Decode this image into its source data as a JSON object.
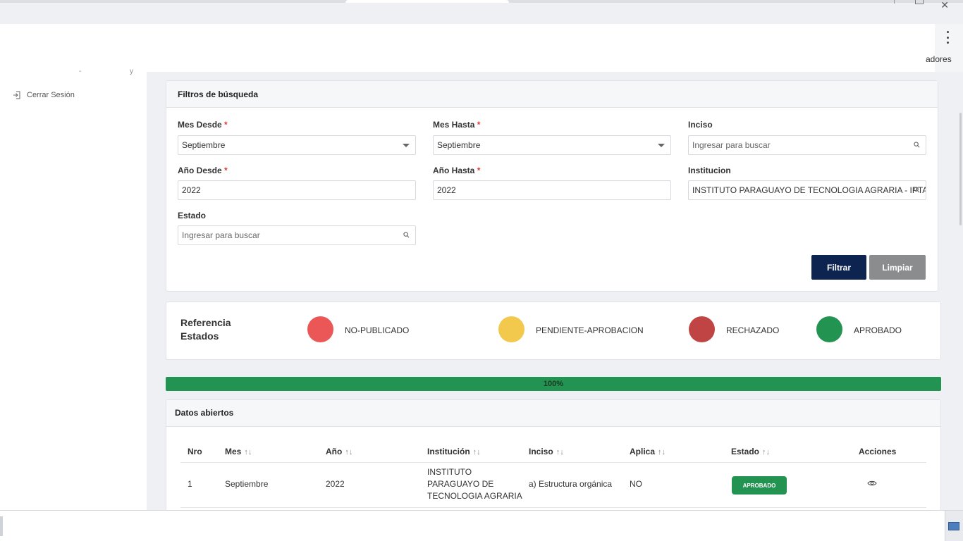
{
  "window": {
    "close_glyph": "✕"
  },
  "header": {
    "cropped_text": "adores"
  },
  "sidebar": {
    "logout_label": "Cerrar Sesión",
    "logout_icon": "logout-icon",
    "fragment1": "-",
    "fragment2": "y"
  },
  "filters": {
    "title": "Filtros de búsqueda",
    "mes_desde": {
      "label": "Mes Desde",
      "value": "Septiembre"
    },
    "mes_hasta": {
      "label": "Mes Hasta",
      "value": "Septiembre"
    },
    "inciso": {
      "label": "Inciso",
      "placeholder": "Ingresar para buscar"
    },
    "anio_desde": {
      "label": "Año Desde",
      "value": "2022"
    },
    "anio_hasta": {
      "label": "Año Hasta",
      "value": "2022"
    },
    "institucion": {
      "label": "Institucion",
      "value": "INSTITUTO PARAGUAYO DE TECNOLOGIA AGRARIA - IPTA"
    },
    "estado": {
      "label": "Estado",
      "placeholder": "Ingresar para buscar"
    },
    "required_mark": "*",
    "filter_button": "Filtrar",
    "clear_button": "Limpiar"
  },
  "reference": {
    "title": "Referencia Estados",
    "items": [
      {
        "label": "NO-PUBLICADO",
        "color": "#eb5757"
      },
      {
        "label": "PENDIENTE-APROBACION",
        "color": "#f2c94c"
      },
      {
        "label": "RECHAZADO",
        "color": "#c04444"
      },
      {
        "label": "APROBADO",
        "color": "#239351"
      }
    ]
  },
  "progress": {
    "value": 100,
    "label": "100%"
  },
  "datos": {
    "title": "Datos abiertos",
    "sort_glyph": "↑↓",
    "columns": [
      "Nro",
      "Mes",
      "Año",
      "Institución",
      "Inciso",
      "Aplica",
      "Estado",
      "Acciones"
    ],
    "rows": [
      {
        "nro": "1",
        "mes": "Septiembre",
        "anio": "2022",
        "institucion_l1": "INSTITUTO",
        "institucion_l2": "PARAGUAYO DE",
        "institucion_l3": "TECNOLOGIA AGRARIA",
        "inciso": "a) Estructura orgánica",
        "aplica": "NO",
        "estado": "APROBADO",
        "estado_color": "#239351",
        "action_icon": "eye-icon"
      }
    ]
  }
}
